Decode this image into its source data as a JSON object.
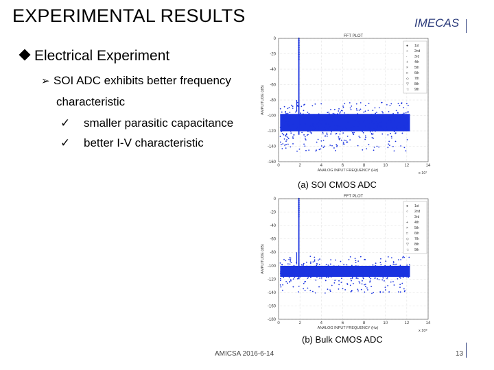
{
  "slide": {
    "title": "EXPERIMENTAL RESULTS",
    "brand": "IMECAS",
    "bullet1": "Electrical Experiment",
    "bullet2_line1": "SOI ADC exhibits better frequency",
    "bullet2_line2": "characteristic",
    "checks": [
      "smaller parasitic capacitance",
      "better I-V characteristic"
    ],
    "footer": "AMICSA 2016-6-14",
    "page_number": "13",
    "accent_color": "#2a3a7a",
    "icons": [
      "diamond-bullet-icon",
      "arrow-bullet-icon",
      "check-icon"
    ]
  },
  "chart_data": [
    {
      "type": "line",
      "title": "FFT PLOT",
      "caption": "(a)  SOI CMOS ADC",
      "xlabel": "ANALOG INPUT FREQUENCY (Hz)",
      "ylabel": "AMPLITUDE (dB)",
      "x_scale_note": "x 10⁷",
      "xlim": [
        0,
        14
      ],
      "ylim": [
        -160,
        0
      ],
      "x_ticks": [
        "0",
        "2",
        "4",
        "6",
        "8",
        "10",
        "12",
        "14"
      ],
      "y_ticks": [
        "0",
        "-20",
        "-40",
        "-60",
        "-80",
        "-100",
        "-120",
        "-140",
        "-160"
      ],
      "legend": [
        "1st",
        "2nd",
        "3rd",
        "4th",
        "5th",
        "6th",
        "7th",
        "8th",
        "9th"
      ],
      "series_color": "#1a33e0",
      "fundamental": {
        "x": 1.9,
        "y": 0
      },
      "noise_floor": [
        -125,
        -95
      ],
      "spur": {
        "x": 1.7,
        "y": -80
      }
    },
    {
      "type": "line",
      "title": "FFT PLOT",
      "caption": "(b) Bulk CMOS ADC",
      "xlabel": "ANALOG INPUT FREQUENCY (Hz)",
      "ylabel": "AMPLITUDE (dB)",
      "x_scale_note": "x 10⁸",
      "xlim": [
        0,
        14
      ],
      "ylim": [
        -180,
        0
      ],
      "x_ticks": [
        "0",
        "2",
        "4",
        "6",
        "8",
        "10",
        "12",
        "14"
      ],
      "y_ticks": [
        "0",
        "-20",
        "-40",
        "-60",
        "-80",
        "-100",
        "-120",
        "-140",
        "-160",
        "-180"
      ],
      "legend": [
        "1st",
        "2nd",
        "3rd",
        "4th",
        "5th",
        "6th",
        "7th",
        "8th",
        "9th"
      ],
      "series_color": "#1a33e0",
      "fundamental": {
        "x": 1.9,
        "y": 0
      },
      "noise_floor": [
        -120,
        -98
      ],
      "spur": {
        "x": 1.7,
        "y": -80
      }
    }
  ]
}
